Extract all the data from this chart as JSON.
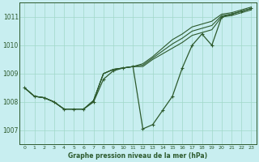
{
  "bg_color": "#c8eef0",
  "grid_color": "#a0d8c8",
  "line_color": "#2d5a2d",
  "title": "Graphe pression niveau de la mer (hPa)",
  "ylim": [
    1006.5,
    1011.5
  ],
  "xlim": [
    -0.5,
    23.5
  ],
  "yticks": [
    1007,
    1008,
    1009,
    1010,
    1011
  ],
  "xticks": [
    0,
    1,
    2,
    3,
    4,
    5,
    6,
    7,
    8,
    9,
    10,
    11,
    12,
    13,
    14,
    15,
    16,
    17,
    18,
    19,
    20,
    21,
    22,
    23
  ],
  "smooth1": [
    1008.5,
    1008.2,
    1008.15,
    1008.0,
    1007.75,
    1007.75,
    1007.75,
    1008.05,
    1009.0,
    1009.15,
    1009.2,
    1009.25,
    1009.25,
    1009.5,
    1009.7,
    1009.9,
    1010.1,
    1010.35,
    1010.45,
    1010.55,
    1011.0,
    1011.05,
    1011.15,
    1011.25
  ],
  "smooth2": [
    1008.5,
    1008.2,
    1008.15,
    1008.0,
    1007.75,
    1007.75,
    1007.75,
    1008.05,
    1009.0,
    1009.15,
    1009.2,
    1009.25,
    1009.3,
    1009.55,
    1009.8,
    1010.05,
    1010.25,
    1010.5,
    1010.6,
    1010.7,
    1011.05,
    1011.1,
    1011.2,
    1011.3
  ],
  "smooth3": [
    1008.5,
    1008.2,
    1008.15,
    1008.0,
    1007.75,
    1007.75,
    1007.75,
    1008.05,
    1009.0,
    1009.15,
    1009.2,
    1009.25,
    1009.35,
    1009.6,
    1009.9,
    1010.2,
    1010.4,
    1010.65,
    1010.75,
    1010.85,
    1011.1,
    1011.15,
    1011.25,
    1011.35
  ],
  "marked_x": [
    0,
    1,
    2,
    3,
    4,
    5,
    6,
    7,
    8,
    9,
    10,
    11,
    12,
    13,
    14,
    15,
    16,
    17,
    18,
    19,
    20,
    21,
    22,
    23
  ],
  "marked_y": [
    1008.5,
    1008.2,
    1008.15,
    1008.0,
    1007.75,
    1007.75,
    1007.75,
    1008.0,
    1008.8,
    1009.1,
    1009.2,
    1009.25,
    1007.05,
    1007.2,
    1007.7,
    1008.2,
    1009.2,
    1010.0,
    1010.4,
    1010.0,
    1011.0,
    1011.1,
    1011.2,
    1011.3
  ]
}
